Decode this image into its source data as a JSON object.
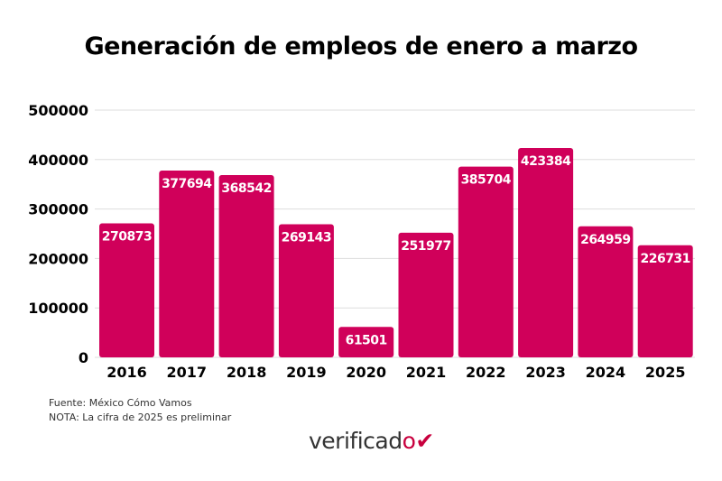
{
  "chart_data": {
    "type": "bar",
    "title": "Generación de empleos de enero a marzo",
    "categories": [
      "2016",
      "2017",
      "2018",
      "2019",
      "2020",
      "2021",
      "2022",
      "2023",
      "2024",
      "2025"
    ],
    "values": [
      270873,
      377694,
      368542,
      269143,
      61501,
      251977,
      385704,
      423384,
      264959,
      226731
    ],
    "ylim": [
      0,
      500000
    ],
    "yticks": [
      "0",
      "100000",
      "200000",
      "300000",
      "400000",
      "500000"
    ],
    "grid": true,
    "bar_color": "#d0005a"
  },
  "notes": {
    "source": "Fuente: México Cómo Vamos",
    "note": "NOTA: La cifra de 2025 es preliminar"
  },
  "logo": "verificado"
}
